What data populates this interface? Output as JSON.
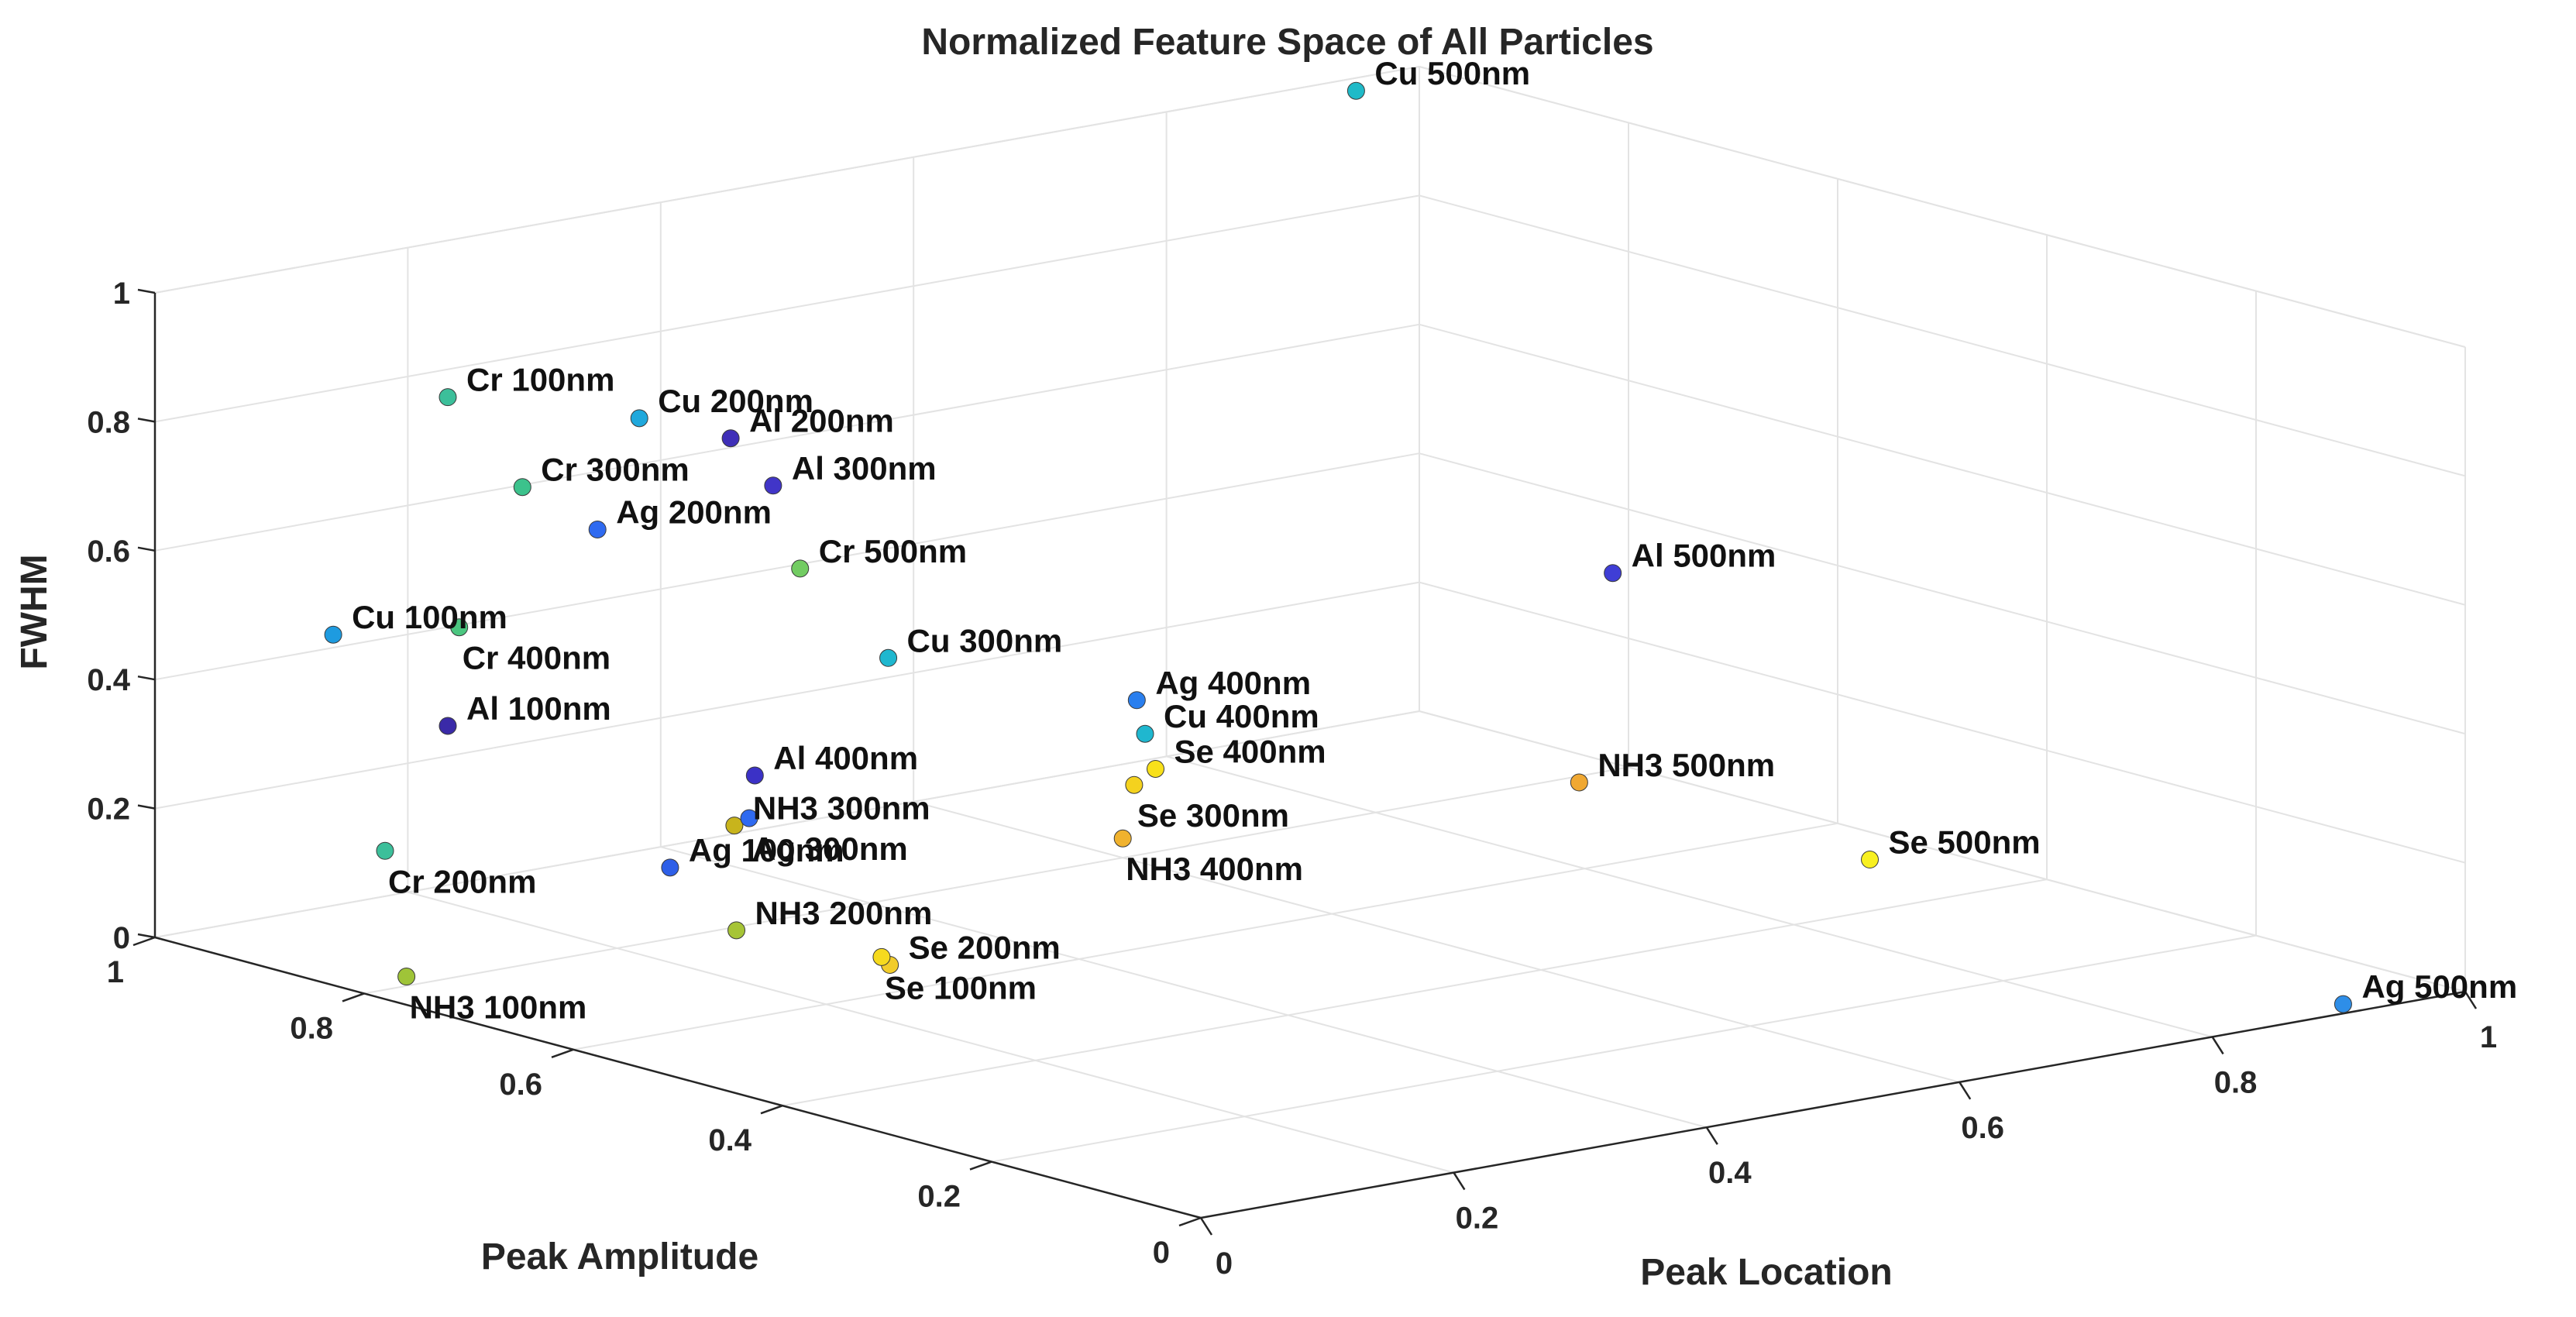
{
  "chart_data": {
    "type": "scatter3d",
    "title": "Normalized Feature Space of All Particles",
    "xlabel": "Peak Location",
    "ylabel": "Peak Amplitude",
    "zlabel": "FWHM",
    "xlim": [
      0,
      1
    ],
    "ylim": [
      0,
      1
    ],
    "zlim": [
      0,
      1
    ],
    "grid": true,
    "x_ticks": [
      "0",
      "0.2",
      "0.4",
      "0.6",
      "0.8",
      "1"
    ],
    "y_ticks": [
      "0",
      "0.2",
      "0.4",
      "0.6",
      "0.8",
      "1"
    ],
    "z_ticks": [
      "0",
      "0.2",
      "0.4",
      "0.6",
      "0.8",
      "1"
    ],
    "points": [
      {
        "label": "Cr 100nm",
        "x": 0.0,
        "y": 0.72,
        "z": 0.96,
        "color": "#3cbf9a"
      },
      {
        "label": "Al 200nm",
        "x": 0.05,
        "y": 0.51,
        "z": 0.97,
        "color": "#3f2fb8"
      },
      {
        "label": "Cr 300nm",
        "x": 0.15,
        "y": 0.83,
        "z": 0.72,
        "color": "#3cc28c"
      },
      {
        "label": "Cu 200nm",
        "x": 0.35,
        "y": 0.96,
        "z": 0.7,
        "color": "#1fa8dc"
      },
      {
        "label": "Al 300nm",
        "x": 0.34,
        "y": 0.82,
        "z": 0.66,
        "color": "#4135c8"
      },
      {
        "label": "Cr 500nm",
        "x": 0.32,
        "y": 0.77,
        "z": 0.56,
        "color": "#72cc62"
      },
      {
        "label": "Cu 100nm",
        "x": 0.05,
        "y": 0.89,
        "z": 0.5,
        "color": "#1e9be0"
      },
      {
        "label": "Cr 400nm",
        "x": 0.1,
        "y": 0.83,
        "z": 0.52,
        "color": "#4bc680"
      },
      {
        "label": "Ag 200nm",
        "x": 0.35,
        "y": 1.0,
        "z": 0.51,
        "color": "#2f6af0"
      },
      {
        "label": "Al 100nm",
        "x": 0.0,
        "y": 0.72,
        "z": 0.45,
        "color": "#3a2aa8"
      },
      {
        "label": "Cr 200nm",
        "x": 0.0,
        "y": 0.78,
        "z": 0.23,
        "color": "#3cbf9a"
      },
      {
        "label": "Ag 100nm",
        "x": 0.06,
        "y": 0.58,
        "z": 0.27,
        "color": "#2e5fe8"
      },
      {
        "label": "NH3 100nm",
        "x": 0.05,
        "y": 0.82,
        "z": 0.0,
        "color": "#9fc438"
      },
      {
        "label": "NH3 200nm",
        "x": 0.22,
        "y": 0.71,
        "z": 0.06,
        "color": "#a6c436"
      },
      {
        "label": "Se 200nm",
        "x": 0.3,
        "y": 0.66,
        "z": 0.0,
        "color": "#f2cc2a"
      },
      {
        "label": "Se 100nm",
        "x": 0.31,
        "y": 0.68,
        "z": 0.0,
        "color": "#f6da1e"
      },
      {
        "label": "Al 400nm",
        "x": 0.4,
        "y": 0.91,
        "z": 0.15,
        "color": "#3b31c6"
      },
      {
        "label": "Cu 300nm",
        "x": 0.58,
        "y": 1.0,
        "z": 0.23,
        "color": "#1fb7cf"
      },
      {
        "label": "NH3 300nm",
        "x": 0.45,
        "y": 0.99,
        "z": 0.02,
        "color": "#c8b41c"
      },
      {
        "label": "Ag 300nm",
        "x": 0.47,
        "y": 1.0,
        "z": 0.02,
        "color": "#2f6af0"
      },
      {
        "label": "Ag 400nm",
        "x": 0.76,
        "y": 0.98,
        "z": 0.11,
        "color": "#2a7fee"
      },
      {
        "label": "Cu 400nm",
        "x": 0.75,
        "y": 0.96,
        "z": 0.07,
        "color": "#1fb7cf"
      },
      {
        "label": "Se 300nm",
        "x": 0.7,
        "y": 0.91,
        "z": 0.03,
        "color": "#f4d21e"
      },
      {
        "label": "Se 400nm",
        "x": 0.75,
        "y": 0.95,
        "z": 0.02,
        "color": "#f8e01a"
      },
      {
        "label": "NH3 400nm",
        "x": 0.6,
        "y": 0.8,
        "z": 0.03,
        "color": "#f0b22e"
      },
      {
        "label": "Cu 500nm",
        "x": 0.95,
        "y": 1.0,
        "z": 0.98,
        "color": "#1fbac8"
      },
      {
        "label": "Al 500nm",
        "x": 0.88,
        "y": 0.67,
        "z": 0.4,
        "color": "#3f3ed6"
      },
      {
        "label": "NH3 500nm",
        "x": 0.87,
        "y": 0.69,
        "z": 0.07,
        "color": "#f0a832"
      },
      {
        "label": "Se 500nm",
        "x": 0.86,
        "y": 0.4,
        "z": 0.08,
        "color": "#f8f020"
      },
      {
        "label": "Ag 500nm",
        "x": 0.92,
        "y": 0.02,
        "z": 0.0,
        "color": "#2e8ee8"
      }
    ]
  }
}
